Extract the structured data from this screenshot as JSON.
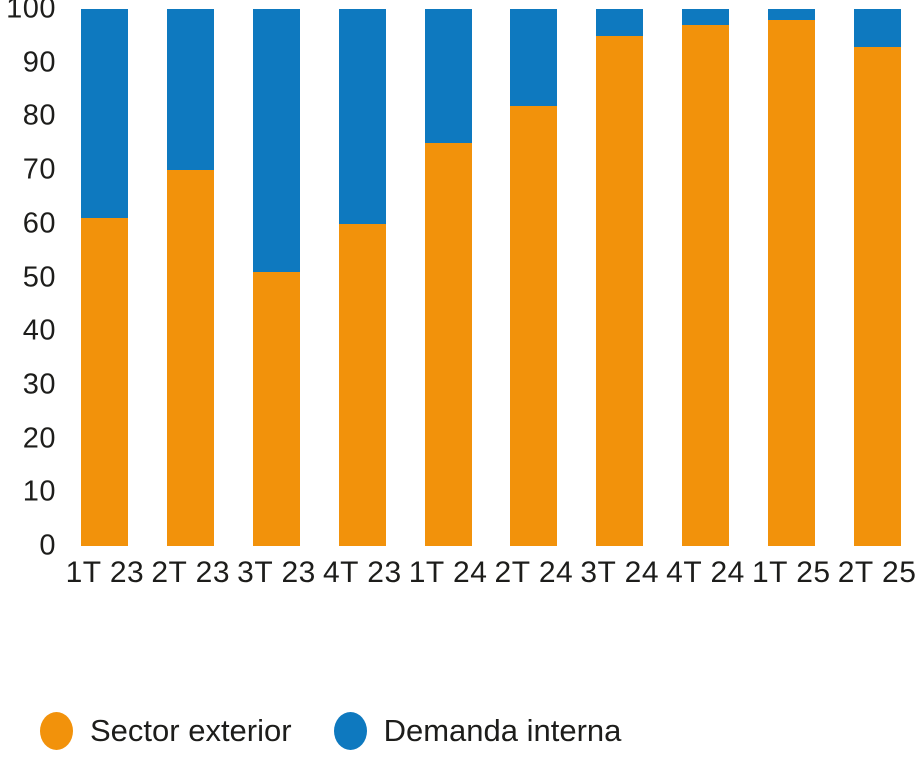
{
  "chart_data": {
    "type": "bar",
    "stacked": true,
    "title": "",
    "xlabel": "",
    "ylabel": "",
    "categories": [
      "1T 23",
      "2T 23",
      "3T 23",
      "4T 23",
      "1T 24",
      "2T 24",
      "3T 24",
      "4T 24",
      "1T 25",
      "2T 25"
    ],
    "series": [
      {
        "name": "Sector exterior",
        "color": "#F2920B",
        "values": [
          61,
          70,
          51,
          60,
          75,
          82,
          95,
          97,
          98,
          93
        ]
      },
      {
        "name": "Demanda interna",
        "color": "#0E79BF",
        "values": [
          39,
          30,
          49,
          40,
          25,
          18,
          5,
          3,
          2,
          7
        ]
      }
    ],
    "ylim": [
      0,
      100
    ],
    "yticks": [
      0,
      10,
      20,
      30,
      40,
      50,
      60,
      70,
      80,
      90,
      100
    ],
    "grid": false,
    "legend_position": "bottom-left"
  },
  "colors": {
    "background": "#FFFFFF",
    "text": "#1D1D1B"
  }
}
